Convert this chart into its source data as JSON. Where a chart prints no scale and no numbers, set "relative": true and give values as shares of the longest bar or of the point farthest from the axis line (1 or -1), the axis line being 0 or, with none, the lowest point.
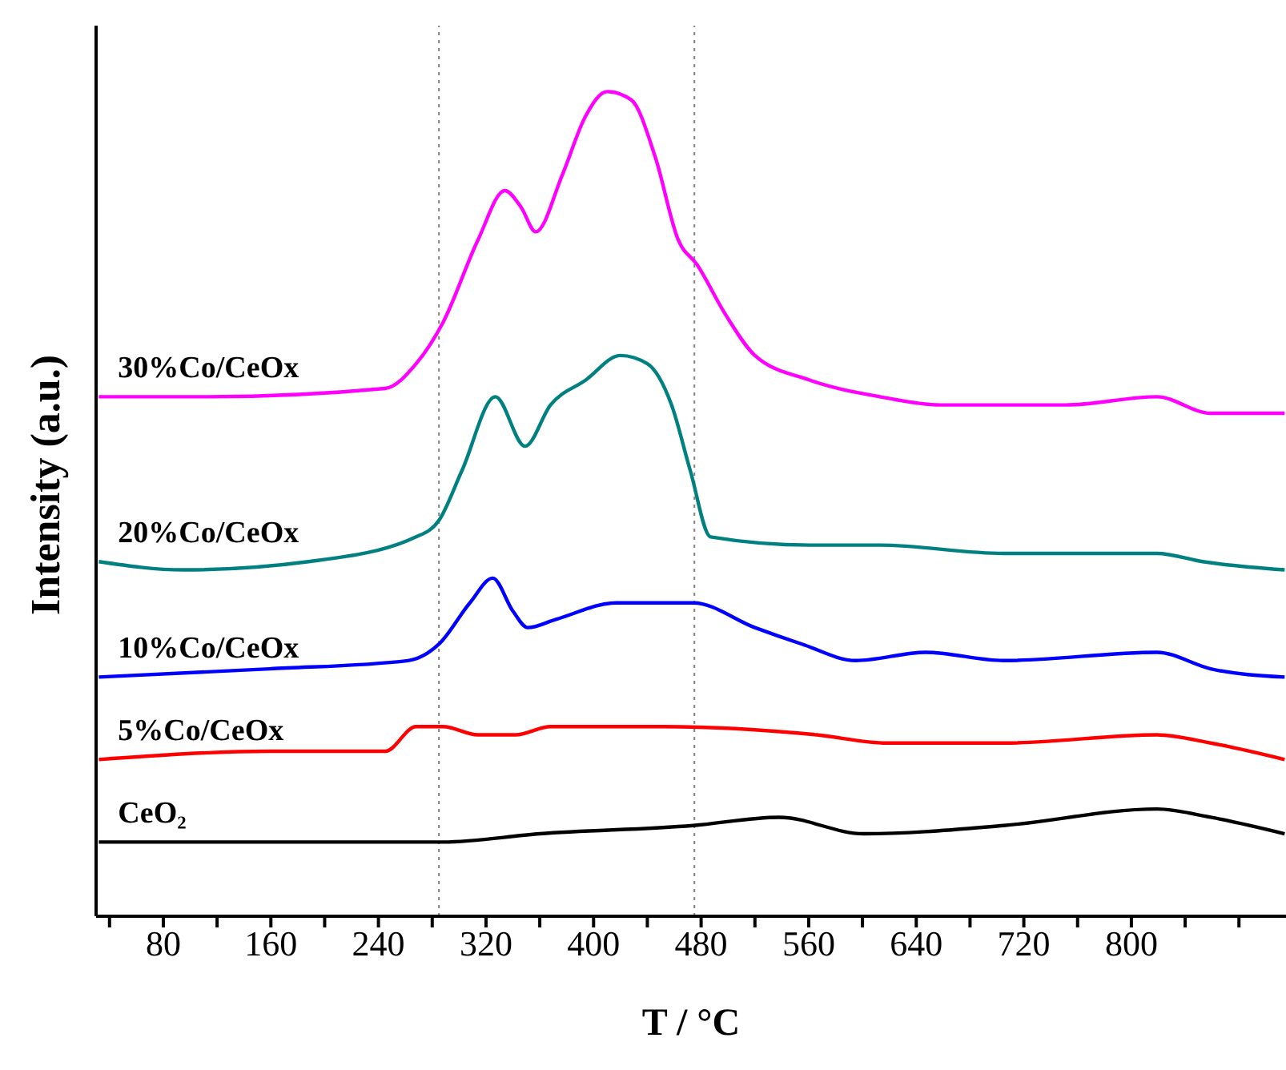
{
  "chart_data": {
    "type": "line",
    "relative": true,
    "xlabel": "T / °C",
    "ylabel": "Intensity (a.u.)",
    "xlim": [
      30,
      915
    ],
    "xticks": [
      {
        "value": 40,
        "label": null
      },
      80,
      {
        "value": 120,
        "label": null
      },
      160,
      {
        "value": 200,
        "label": null
      },
      240,
      {
        "value": 280,
        "label": null
      },
      320,
      {
        "value": 360,
        "label": null
      },
      400,
      {
        "value": 440,
        "label": null
      },
      480,
      {
        "value": 520,
        "label": null
      },
      560,
      {
        "value": 600,
        "label": null
      },
      640,
      {
        "value": 680,
        "label": null
      },
      720,
      {
        "value": 760,
        "label": null
      },
      800,
      {
        "value": 840,
        "label": null
      },
      {
        "value": 880,
        "label": null
      }
    ],
    "marker": "none",
    "grid": false,
    "legend": false,
    "ref_lines": [
      {
        "axis": "x",
        "value": 285,
        "color": "#808080",
        "line_style": "dotted"
      },
      {
        "axis": "x",
        "value": 475,
        "color": "#808080",
        "line_style": "dotted"
      }
    ],
    "series": [
      {
        "name": "30%Co/CeOx",
        "color": "#ff00ff",
        "x": [
          32,
          113,
          245,
          268,
          288,
          314,
          334,
          346,
          357,
          377,
          394,
          410,
          428,
          446,
          463,
          477,
          498,
          520,
          561,
          613,
          658,
          751,
          819,
          859,
          914
        ],
        "values": [
          0.63,
          0.63,
          0.64,
          0.67,
          0.72,
          0.82,
          0.88,
          0.86,
          0.83,
          0.9,
          0.97,
          1.0,
          0.99,
          0.92,
          0.82,
          0.79,
          0.73,
          0.68,
          0.65,
          0.63,
          0.62,
          0.62,
          0.63,
          0.61,
          0.61
        ]
      },
      {
        "name": "20%Co/CeOx",
        "color": "#008080",
        "x": [
          32,
          95,
          188,
          268,
          285,
          302,
          327,
          349,
          368,
          394,
          420,
          440,
          458,
          472,
          487,
          561,
          613,
          705,
          819,
          853,
          914
        ],
        "values": [
          0.43,
          0.42,
          0.43,
          0.46,
          0.48,
          0.54,
          0.63,
          0.57,
          0.62,
          0.65,
          0.68,
          0.67,
          0.62,
          0.54,
          0.46,
          0.45,
          0.45,
          0.44,
          0.44,
          0.43,
          0.42
        ]
      },
      {
        "name": "10%Co/CeOx",
        "color": "#0000ff",
        "x": [
          32,
          159,
          262,
          285,
          308,
          325,
          340,
          351,
          372,
          417,
          474,
          520,
          555,
          595,
          647,
          705,
          819,
          859,
          914
        ],
        "values": [
          0.29,
          0.3,
          0.31,
          0.33,
          0.38,
          0.41,
          0.37,
          0.35,
          0.36,
          0.38,
          0.38,
          0.35,
          0.33,
          0.31,
          0.32,
          0.31,
          0.32,
          0.3,
          0.29
        ]
      },
      {
        "name": "5%Co/CeOx",
        "color": "#ff0000",
        "x": [
          32,
          159,
          245,
          268,
          288,
          314,
          342,
          368,
          452,
          566,
          618,
          705,
          819,
          859,
          914
        ],
        "values": [
          0.19,
          0.2,
          0.2,
          0.23,
          0.23,
          0.22,
          0.22,
          0.23,
          0.23,
          0.22,
          0.21,
          0.21,
          0.22,
          0.21,
          0.19
        ]
      },
      {
        "name": "CeO₂",
        "color": "#000000",
        "x": [
          32,
          288,
          360,
          474,
          538,
          601,
          705,
          819,
          859,
          914
        ],
        "values": [
          0.09,
          0.09,
          0.1,
          0.11,
          0.12,
          0.1,
          0.11,
          0.13,
          0.12,
          0.1
        ]
      }
    ]
  }
}
